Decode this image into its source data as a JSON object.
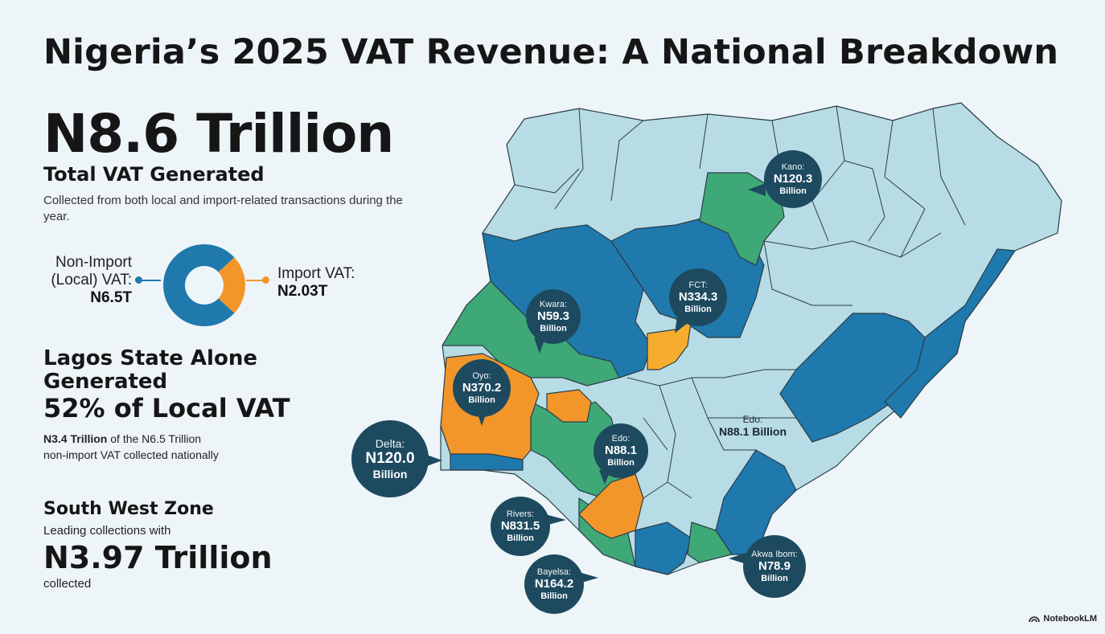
{
  "title": "Nigeria’s 2025 VAT Revenue: A National Breakdown",
  "total": {
    "value": "N8.6 Trillion",
    "label": "Total VAT Generated",
    "description": "Collected from both local and import-related transactions during the year."
  },
  "donut": {
    "local_label": "Non-Import (Local) VAT:",
    "local_value": "N6.5T",
    "local_amount": 6.5,
    "import_label": "Import VAT:",
    "import_value": "N2.03T",
    "import_amount": 2.03,
    "local_color": "#1f79ad",
    "import_color": "#f2962a"
  },
  "lagos": {
    "heading": "Lagos State Alone Generated",
    "percent_text": "52% of Local VAT",
    "amount_bold": "N3.4 Trillion",
    "desc_rest": " of the N6.5 Trillion",
    "desc_line2": "non-import VAT collected nationally"
  },
  "south_west": {
    "heading": "South West Zone",
    "lead": "Leading collections with",
    "value": "N3.97 Trillion",
    "after": "collected"
  },
  "map_callouts": {
    "kano": {
      "state": "Kano:",
      "amount": "N120.3",
      "unit": "Billion"
    },
    "fct": {
      "state": "FCT:",
      "amount": "N334.3",
      "unit": "Billion"
    },
    "kwara": {
      "state": "Kwara:",
      "amount": "N59.3",
      "unit": "Billion"
    },
    "oyo": {
      "state": "Oyo:",
      "amount": "N370.2",
      "unit": "Billion"
    },
    "delta": {
      "state": "Delta:",
      "amount": "N120.0",
      "unit": "Billion"
    },
    "edo_bubble": {
      "state": "Edo:",
      "amount": "N88.1",
      "unit": "Billion"
    },
    "edo_plain": {
      "state": "Edo:",
      "amount": "N88.1 Billion"
    },
    "rivers": {
      "state": "Rivers:",
      "amount": "N831.5",
      "unit": "Billion"
    },
    "bayelsa": {
      "state": "Bayelsa:",
      "amount": "N164.2",
      "unit": "Billion"
    },
    "akwa_ibom": {
      "state": "Akwa Ibom:",
      "amount": "N78.9",
      "unit": "Billion"
    }
  },
  "colors": {
    "light": "#b7dce6",
    "blue": "#1f79ad",
    "green": "#3fa877",
    "orange": "#f2962a",
    "bubble": "#1d4a5f"
  },
  "brand": "NotebookLM"
}
